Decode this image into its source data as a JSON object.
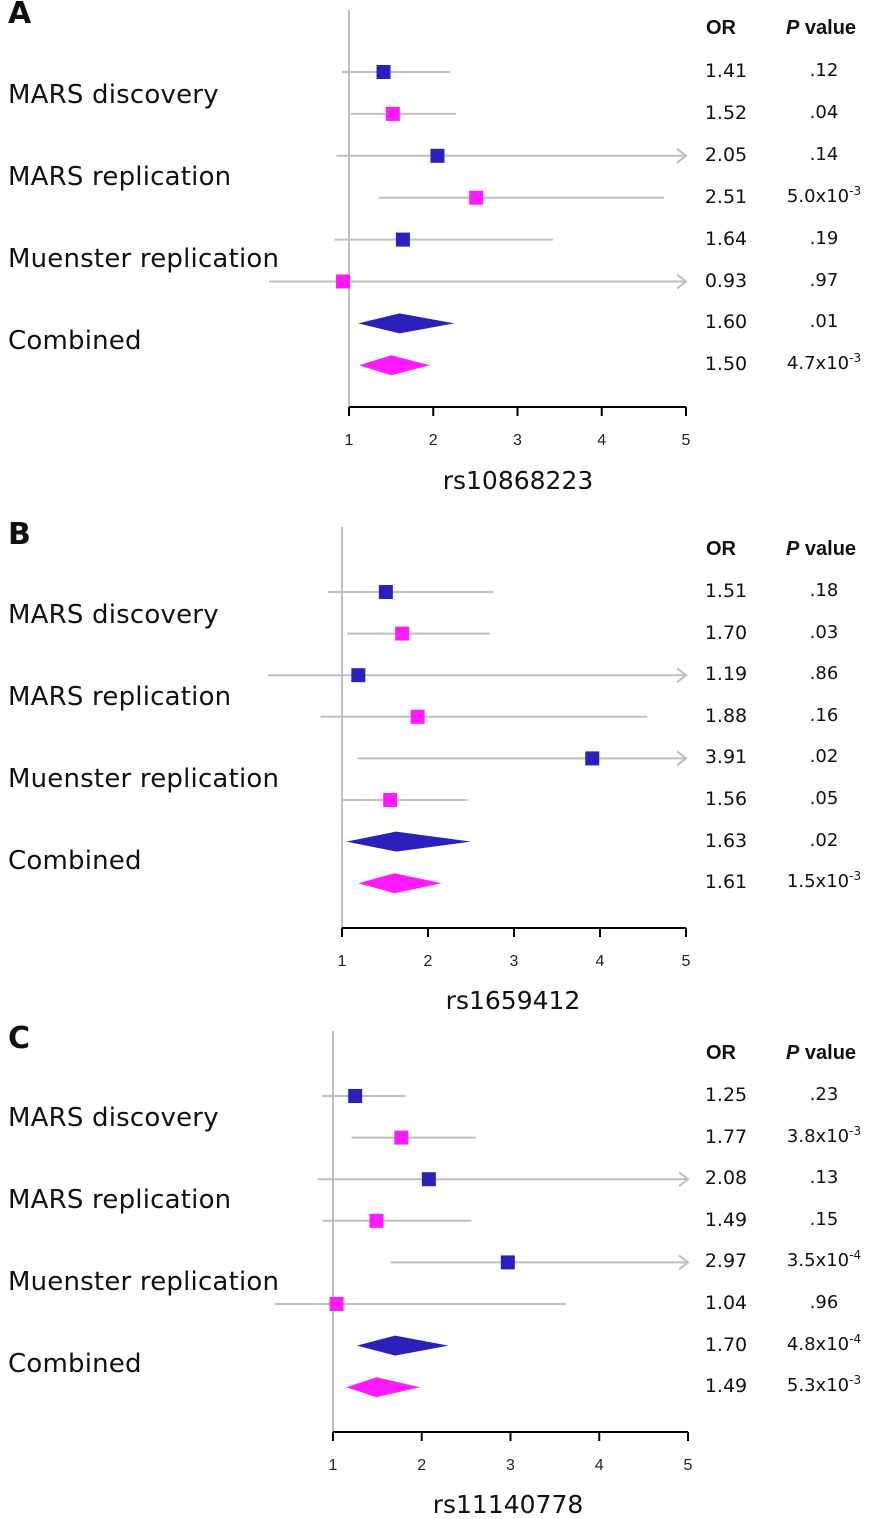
{
  "colors": {
    "series1": "#2b1fbd",
    "series2": "#ff1aff",
    "whisker": "#bfbfbf",
    "axis": "#000000"
  },
  "headers": {
    "or": "OR",
    "p_italic": "P",
    "p_rest": " value"
  },
  "row_labels": [
    "MARS discovery",
    "MARS replication",
    "Muenster replication",
    "Combined"
  ],
  "chart_data": [
    {
      "type": "forest",
      "panel": "A",
      "xlabel": "rs10868223",
      "xlim": [
        1,
        5
      ],
      "xticks": [
        "1",
        "2",
        "3",
        "4",
        "5"
      ],
      "reference_line": 1,
      "rows": [
        {
          "series": 1,
          "or": 1.41,
          "or_label": "1.41",
          "lo": 0.92,
          "hi": 2.2,
          "arrow": false,
          "p": ".12",
          "p_exp": ""
        },
        {
          "series": 2,
          "or": 1.52,
          "or_label": "1.52",
          "lo": 1.02,
          "hi": 2.27,
          "arrow": false,
          "p": ".04",
          "p_exp": ""
        },
        {
          "series": 1,
          "or": 2.05,
          "or_label": "2.05",
          "lo": 0.85,
          "hi": 5.0,
          "arrow": true,
          "p": ".14",
          "p_exp": ""
        },
        {
          "series": 2,
          "or": 2.51,
          "or_label": "2.51",
          "lo": 1.35,
          "hi": 4.74,
          "arrow": false,
          "p": "5.0x10",
          "p_exp": "-3"
        },
        {
          "series": 1,
          "or": 1.64,
          "or_label": "1.64",
          "lo": 0.83,
          "hi": 3.42,
          "arrow": false,
          "p": ".19",
          "p_exp": ""
        },
        {
          "series": 2,
          "or": 0.93,
          "or_label": "0.93",
          "lo": 0.05,
          "hi": 5.0,
          "arrow": true,
          "p": ".97",
          "p_exp": ""
        },
        {
          "series": 1,
          "or": 1.6,
          "or_label": "1.60",
          "lo": 1.11,
          "hi": 2.25,
          "diamond": true,
          "p": ".01",
          "p_exp": ""
        },
        {
          "series": 2,
          "or": 1.5,
          "or_label": "1.50",
          "lo": 1.12,
          "hi": 1.96,
          "diamond": true,
          "p": "4.7x10",
          "p_exp": "-3"
        }
      ]
    },
    {
      "type": "forest",
      "panel": "B",
      "xlabel": "rs1659412",
      "xlim": [
        1,
        5
      ],
      "xticks": [
        "1",
        "2",
        "3",
        "4",
        "5"
      ],
      "reference_line": 1,
      "rows": [
        {
          "series": 1,
          "or": 1.51,
          "or_label": "1.51",
          "lo": 0.84,
          "hi": 2.76,
          "arrow": false,
          "p": ".18",
          "p_exp": ""
        },
        {
          "series": 2,
          "or": 1.7,
          "or_label": "1.70",
          "lo": 1.06,
          "hi": 2.72,
          "arrow": false,
          "p": ".03",
          "p_exp": ""
        },
        {
          "series": 1,
          "or": 1.19,
          "or_label": "1.19",
          "lo": 0.1,
          "hi": 5.0,
          "arrow": true,
          "p": ".86",
          "p_exp": ""
        },
        {
          "series": 2,
          "or": 1.88,
          "or_label": "1.88",
          "lo": 0.75,
          "hi": 4.55,
          "arrow": false,
          "p": ".16",
          "p_exp": ""
        },
        {
          "series": 1,
          "or": 3.91,
          "or_label": "3.91",
          "lo": 1.18,
          "hi": 5.0,
          "arrow": true,
          "p": ".02",
          "p_exp": ""
        },
        {
          "series": 2,
          "or": 1.56,
          "or_label": "1.56",
          "lo": 1.0,
          "hi": 2.46,
          "arrow": false,
          "p": ".05",
          "p_exp": ""
        },
        {
          "series": 1,
          "or": 1.63,
          "or_label": "1.63",
          "lo": 1.05,
          "hi": 2.5,
          "diamond": true,
          "p": ".02",
          "p_exp": ""
        },
        {
          "series": 2,
          "or": 1.61,
          "or_label": "1.61",
          "lo": 1.19,
          "hi": 2.16,
          "diamond": true,
          "p": "1.5x10",
          "p_exp": "-3"
        }
      ]
    },
    {
      "type": "forest",
      "panel": "C",
      "xlabel": "rs11140778",
      "xlim": [
        1,
        5
      ],
      "xticks": [
        "1",
        "2",
        "3",
        "4",
        "5"
      ],
      "reference_line": 1,
      "rows": [
        {
          "series": 1,
          "or": 1.25,
          "or_label": "1.25",
          "lo": 0.88,
          "hi": 1.82,
          "arrow": false,
          "p": ".23",
          "p_exp": ""
        },
        {
          "series": 2,
          "or": 1.77,
          "or_label": "1.77",
          "lo": 1.21,
          "hi": 2.61,
          "arrow": false,
          "p": "3.8x10",
          "p_exp": "-3"
        },
        {
          "series": 1,
          "or": 2.08,
          "or_label": "2.08",
          "lo": 0.83,
          "hi": 5.0,
          "arrow": true,
          "p": ".13",
          "p_exp": ""
        },
        {
          "series": 2,
          "or": 1.49,
          "or_label": "1.49",
          "lo": 0.88,
          "hi": 2.56,
          "arrow": false,
          "p": ".15",
          "p_exp": ""
        },
        {
          "series": 1,
          "or": 2.97,
          "or_label": "2.97",
          "lo": 1.65,
          "hi": 5.0,
          "arrow": true,
          "p": "3.5x10",
          "p_exp": "-4"
        },
        {
          "series": 2,
          "or": 1.04,
          "or_label": "1.04",
          "lo": 0.35,
          "hi": 3.62,
          "arrow": false,
          "p": ".96",
          "p_exp": ""
        },
        {
          "series": 1,
          "or": 1.7,
          "or_label": "1.70",
          "lo": 1.27,
          "hi": 2.3,
          "diamond": true,
          "p": "4.8x10",
          "p_exp": "-4"
        },
        {
          "series": 2,
          "or": 1.49,
          "or_label": "1.49",
          "lo": 1.15,
          "hi": 1.98,
          "diamond": true,
          "p": "5.3x10",
          "p_exp": "-3"
        }
      ]
    }
  ]
}
